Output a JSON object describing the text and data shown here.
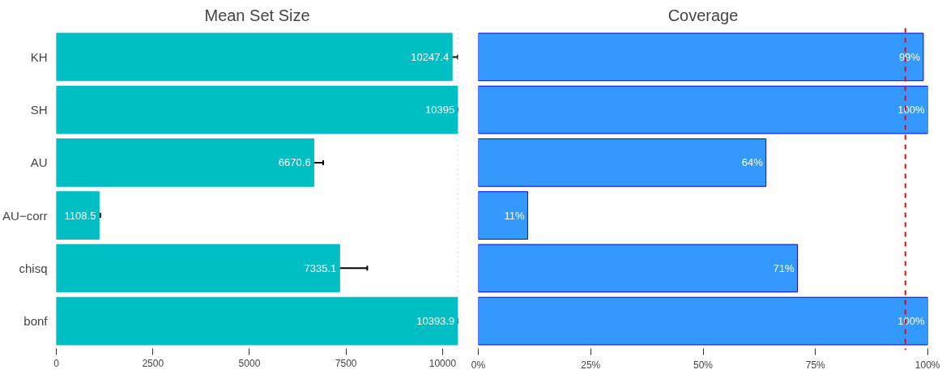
{
  "chart_data": [
    {
      "type": "bar",
      "orientation": "horizontal",
      "title": "Mean Set Size",
      "categories": [
        "KH",
        "SH",
        "AU",
        "AU−corr",
        "chisq",
        "bonf"
      ],
      "series": [
        {
          "color": "#00bfc4",
          "values": [
            10247.4,
            10395,
            6670.6,
            1108.5,
            7335.1,
            10393.9
          ],
          "errors": [
            [
              10080,
              10395
            ],
            [
              10390,
              10400
            ],
            [
              6430,
              6910
            ],
            [
              1080,
              1140
            ],
            [
              6620,
              8050
            ],
            [
              10388,
              10400
            ]
          ]
        }
      ],
      "xlim": [
        0,
        10400
      ],
      "xticks": [
        0,
        2500,
        5000,
        7500,
        10000
      ],
      "data_labels": true,
      "grid": false,
      "ref_lines": [
        {
          "axis": "x",
          "value": 10395,
          "color": "#87cefa",
          "line_style": "dotted"
        }
      ]
    },
    {
      "type": "bar",
      "orientation": "horizontal",
      "title": "Coverage",
      "categories": [
        null,
        null,
        null,
        null,
        null,
        null
      ],
      "series": [
        {
          "color": "#3399ff",
          "values": [
            99,
            100,
            64,
            11,
            71,
            100
          ],
          "value_labels": [
            "99%",
            "100%",
            "64%",
            "11%",
            "71%",
            "100%"
          ]
        }
      ],
      "xlim": [
        0,
        100
      ],
      "xticks": [
        {
          "value": 0,
          "label": "0%"
        },
        {
          "value": 25,
          "label": "25%"
        },
        {
          "value": 50,
          "label": "50%"
        },
        {
          "value": 75,
          "label": "75%"
        },
        {
          "value": 100,
          "label": "100%"
        }
      ],
      "tick_labels": "x",
      "grid": false,
      "ref_lines": [
        {
          "axis": "x",
          "value": 95,
          "color": "#ff0000",
          "line_style": "dashed"
        }
      ]
    }
  ]
}
